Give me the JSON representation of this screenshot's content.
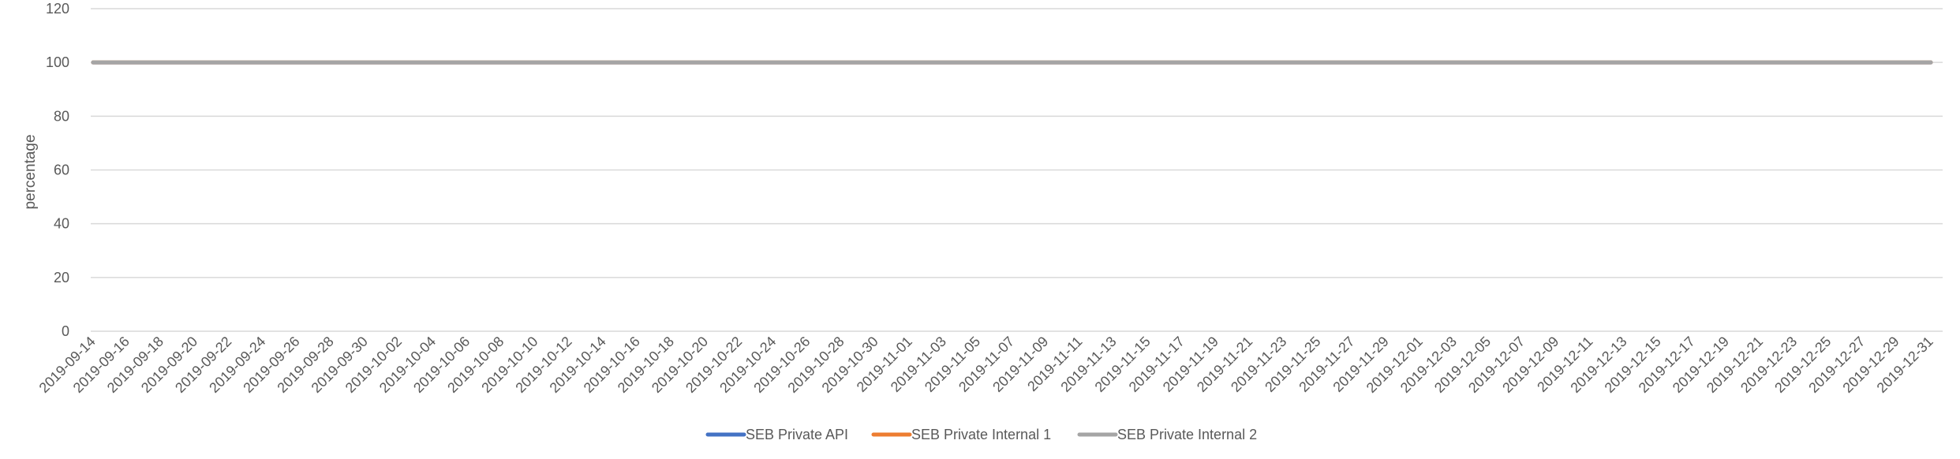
{
  "chart_data": {
    "type": "line",
    "title": "",
    "xlabel": "",
    "ylabel": "percentage",
    "ylim": [
      0,
      120
    ],
    "y_ticks": [
      0,
      20,
      40,
      60,
      80,
      100,
      120
    ],
    "x_start": "2019-09-14",
    "x_end": "2019-12-31",
    "x_tick_labels": [
      "2019-09-14",
      "2019-09-16",
      "2019-09-18",
      "2019-09-20",
      "2019-09-22",
      "2019-09-24",
      "2019-09-26",
      "2019-09-28",
      "2019-09-30",
      "2019-10-02",
      "2019-10-04",
      "2019-10-06",
      "2019-10-08",
      "2019-10-10",
      "2019-10-12",
      "2019-10-14",
      "2019-10-16",
      "2019-10-18",
      "2019-10-20",
      "2019-10-22",
      "2019-10-24",
      "2019-10-26",
      "2019-10-28",
      "2019-10-30",
      "2019-11-01",
      "2019-11-03",
      "2019-11-05",
      "2019-11-07",
      "2019-11-09",
      "2019-11-11",
      "2019-11-13",
      "2019-11-15",
      "2019-11-17",
      "2019-11-19",
      "2019-11-21",
      "2019-11-23",
      "2019-11-25",
      "2019-11-27",
      "2019-11-29",
      "2019-12-01",
      "2019-12-03",
      "2019-12-05",
      "2019-12-07",
      "2019-12-09",
      "2019-12-11",
      "2019-12-13",
      "2019-12-15",
      "2019-12-17",
      "2019-12-19",
      "2019-12-21",
      "2019-12-23",
      "2019-12-25",
      "2019-12-27",
      "2019-12-29",
      "2019-12-31"
    ],
    "grid": true,
    "legend_position": "bottom",
    "series": [
      {
        "name": "SEB Private API",
        "color": "#4472C4",
        "constant_value": 100
      },
      {
        "name": "SEB Private Internal 1",
        "color": "#ED7D31",
        "constant_value": 100
      },
      {
        "name": "SEB Private Internal 2",
        "color": "#A5A5A5",
        "constant_value": 100
      }
    ]
  }
}
